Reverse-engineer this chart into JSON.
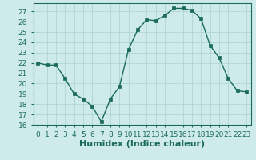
{
  "x": [
    0,
    1,
    2,
    3,
    4,
    5,
    6,
    7,
    8,
    9,
    10,
    11,
    12,
    13,
    14,
    15,
    16,
    17,
    18,
    19,
    20,
    21,
    22,
    23
  ],
  "y": [
    22,
    21.8,
    21.8,
    20.5,
    19,
    18.5,
    17.8,
    16.3,
    18.5,
    19.7,
    23.3,
    25.2,
    26.2,
    26.1,
    26.6,
    27.3,
    27.3,
    27.1,
    26.3,
    23.7,
    22.5,
    20.5,
    19.3,
    19.2
  ],
  "line_color": "#1a6b5a",
  "marker": "s",
  "marker_size": 2.5,
  "linewidth": 1.0,
  "xlabel": "Humidex (Indice chaleur)",
  "xlim": [
    -0.5,
    23.5
  ],
  "ylim": [
    16,
    27.8
  ],
  "yticks": [
    16,
    17,
    18,
    19,
    20,
    21,
    22,
    23,
    24,
    25,
    26,
    27
  ],
  "xticks": [
    0,
    1,
    2,
    3,
    4,
    5,
    6,
    7,
    8,
    9,
    10,
    11,
    12,
    13,
    14,
    15,
    16,
    17,
    18,
    19,
    20,
    21,
    22,
    23
  ],
  "xtick_labels": [
    "0",
    "1",
    "2",
    "3",
    "4",
    "5",
    "6",
    "7",
    "8",
    "9",
    "10",
    "11",
    "12",
    "13",
    "14",
    "15",
    "16",
    "17",
    "18",
    "19",
    "20",
    "21",
    "22",
    "23"
  ],
  "background_color": "#ceeaea",
  "grid_color": "#b0d4d4",
  "tick_fontsize": 6.5,
  "xlabel_fontsize": 8,
  "xlabel_bold": true
}
